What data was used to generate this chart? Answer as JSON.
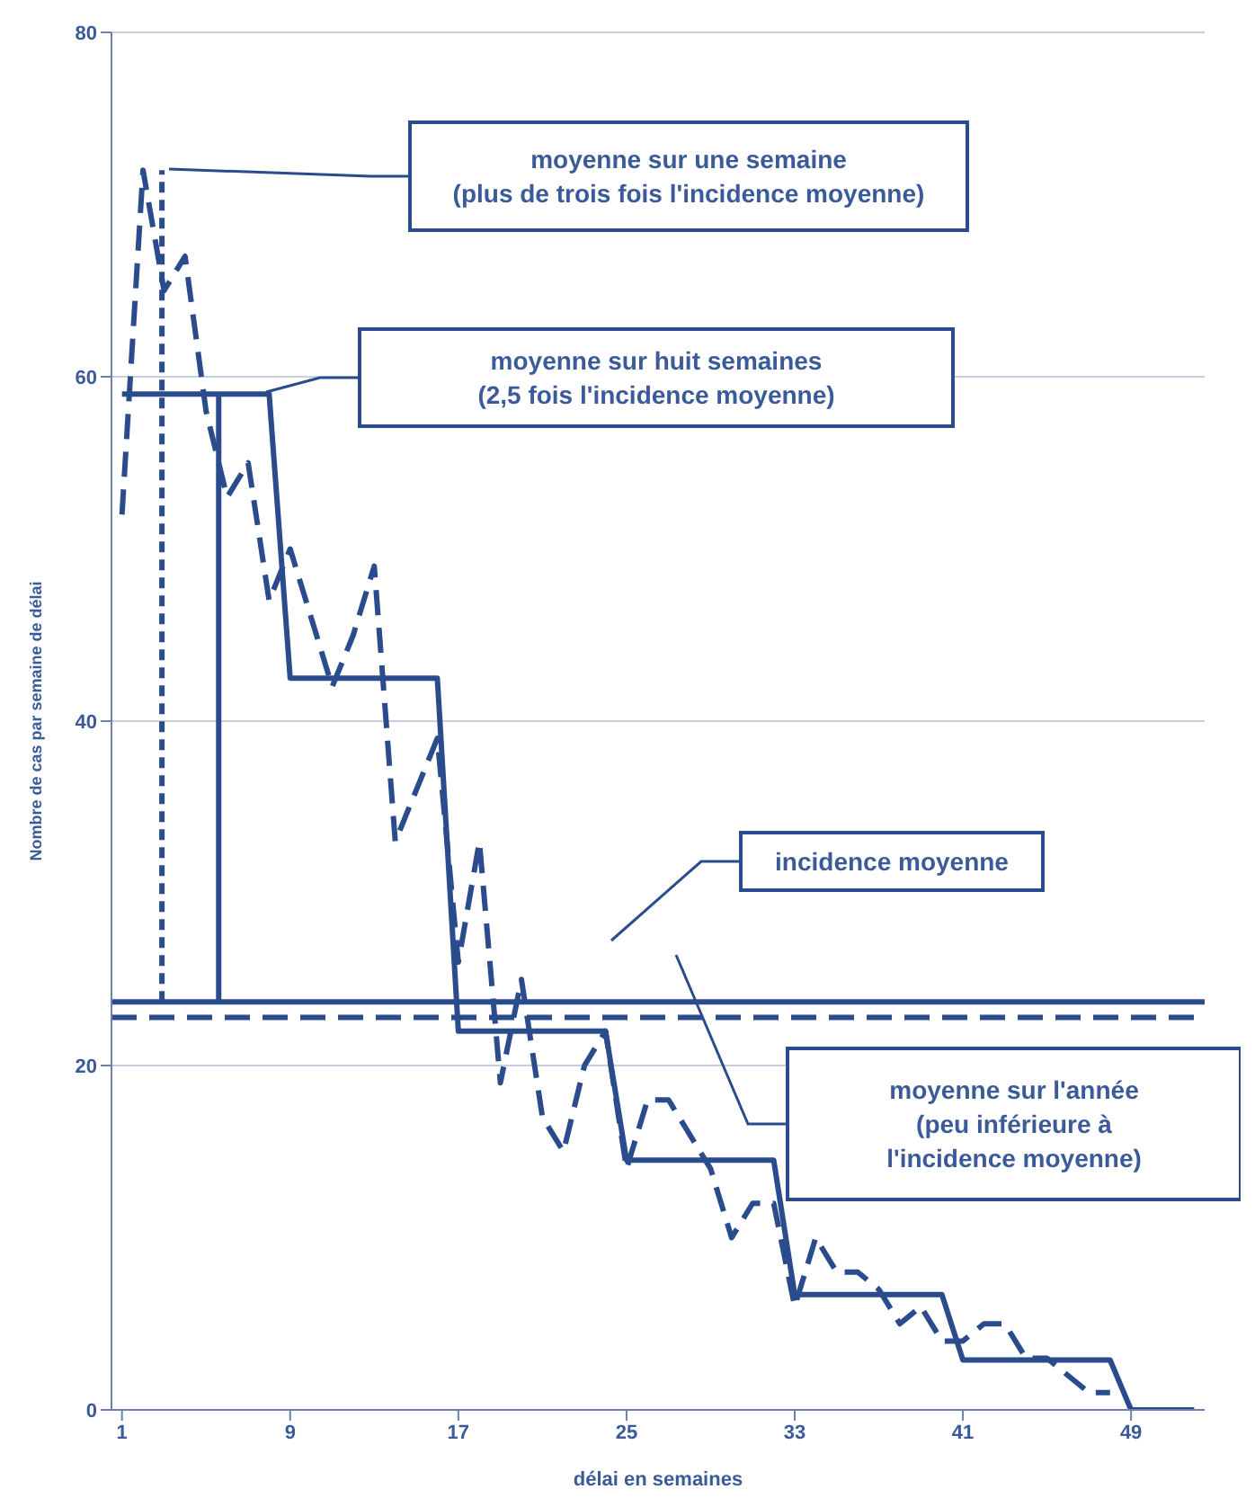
{
  "chart_data": {
    "type": "line",
    "xlabel": "délai en semaines",
    "ylabel": "Nombre de cas par semaine de délai",
    "xlim": [
      0.5,
      52.5
    ],
    "xticks": [
      1,
      9,
      17,
      25,
      33,
      41,
      49
    ],
    "ylim": [
      0,
      80
    ],
    "yticks": [
      0,
      20,
      40,
      60,
      80
    ],
    "grid": "y",
    "marker": "none",
    "series": [
      {
        "color": "#2b4c8c",
        "line_style": "dashed",
        "x": [
          1,
          2,
          3,
          4,
          5,
          6,
          7,
          8,
          9,
          10,
          11,
          12,
          13,
          14,
          15,
          16,
          17,
          18,
          19,
          20,
          21,
          22,
          23,
          24,
          25,
          26,
          27,
          28,
          29,
          30,
          31,
          32,
          33,
          34,
          35,
          36,
          37,
          38,
          39,
          40,
          41,
          42,
          43,
          44,
          45,
          46,
          47,
          48
        ],
        "values": [
          52,
          72,
          65,
          67,
          58,
          53,
          55,
          47,
          50,
          46,
          42,
          45,
          49,
          33,
          36,
          39,
          26,
          33,
          19,
          25,
          17,
          15,
          20,
          22,
          14,
          18,
          18,
          16,
          14,
          10,
          12,
          12,
          6,
          10,
          8,
          8,
          7,
          5,
          6,
          4,
          4,
          5,
          5,
          3,
          3,
          2,
          1,
          1
        ]
      },
      {
        "color": "#2b4c8c",
        "line_style": "solid",
        "x": [
          1,
          8,
          9,
          16,
          17,
          24,
          25,
          32,
          33,
          40,
          41,
          48,
          49,
          52
        ],
        "values": [
          59,
          59,
          42.5,
          42.5,
          22,
          22,
          14.5,
          14.5,
          6.7,
          6.7,
          2.9,
          2.9,
          0,
          0
        ]
      },
      {
        "color": "#2b4c8c",
        "line_style": "dotted",
        "x": [
          2.9,
          2.9
        ],
        "values": [
          23.7,
          72
        ]
      },
      {
        "color": "#2b4c8c",
        "line_style": "solid",
        "x": [
          5.6,
          5.6
        ],
        "values": [
          23.7,
          59
        ]
      }
    ],
    "ref_lines": [
      {
        "axis": "y",
        "value": 23.7,
        "color": "#2b4c8c",
        "line_style": "solid"
      },
      {
        "axis": "y",
        "value": 22.8,
        "color": "#2b4c8c",
        "line_style": "dashed"
      }
    ],
    "annotations": [
      "moyenne sur une semaine\n(plus de trois fois l'incidence moyenne)",
      "moyenne sur huit semaines\n(2,5 fois l'incidence moyenne)",
      "incidence moyenne",
      "moyenne sur l'année\n(peu inférieure à\nl'incidence moyenne)"
    ]
  }
}
